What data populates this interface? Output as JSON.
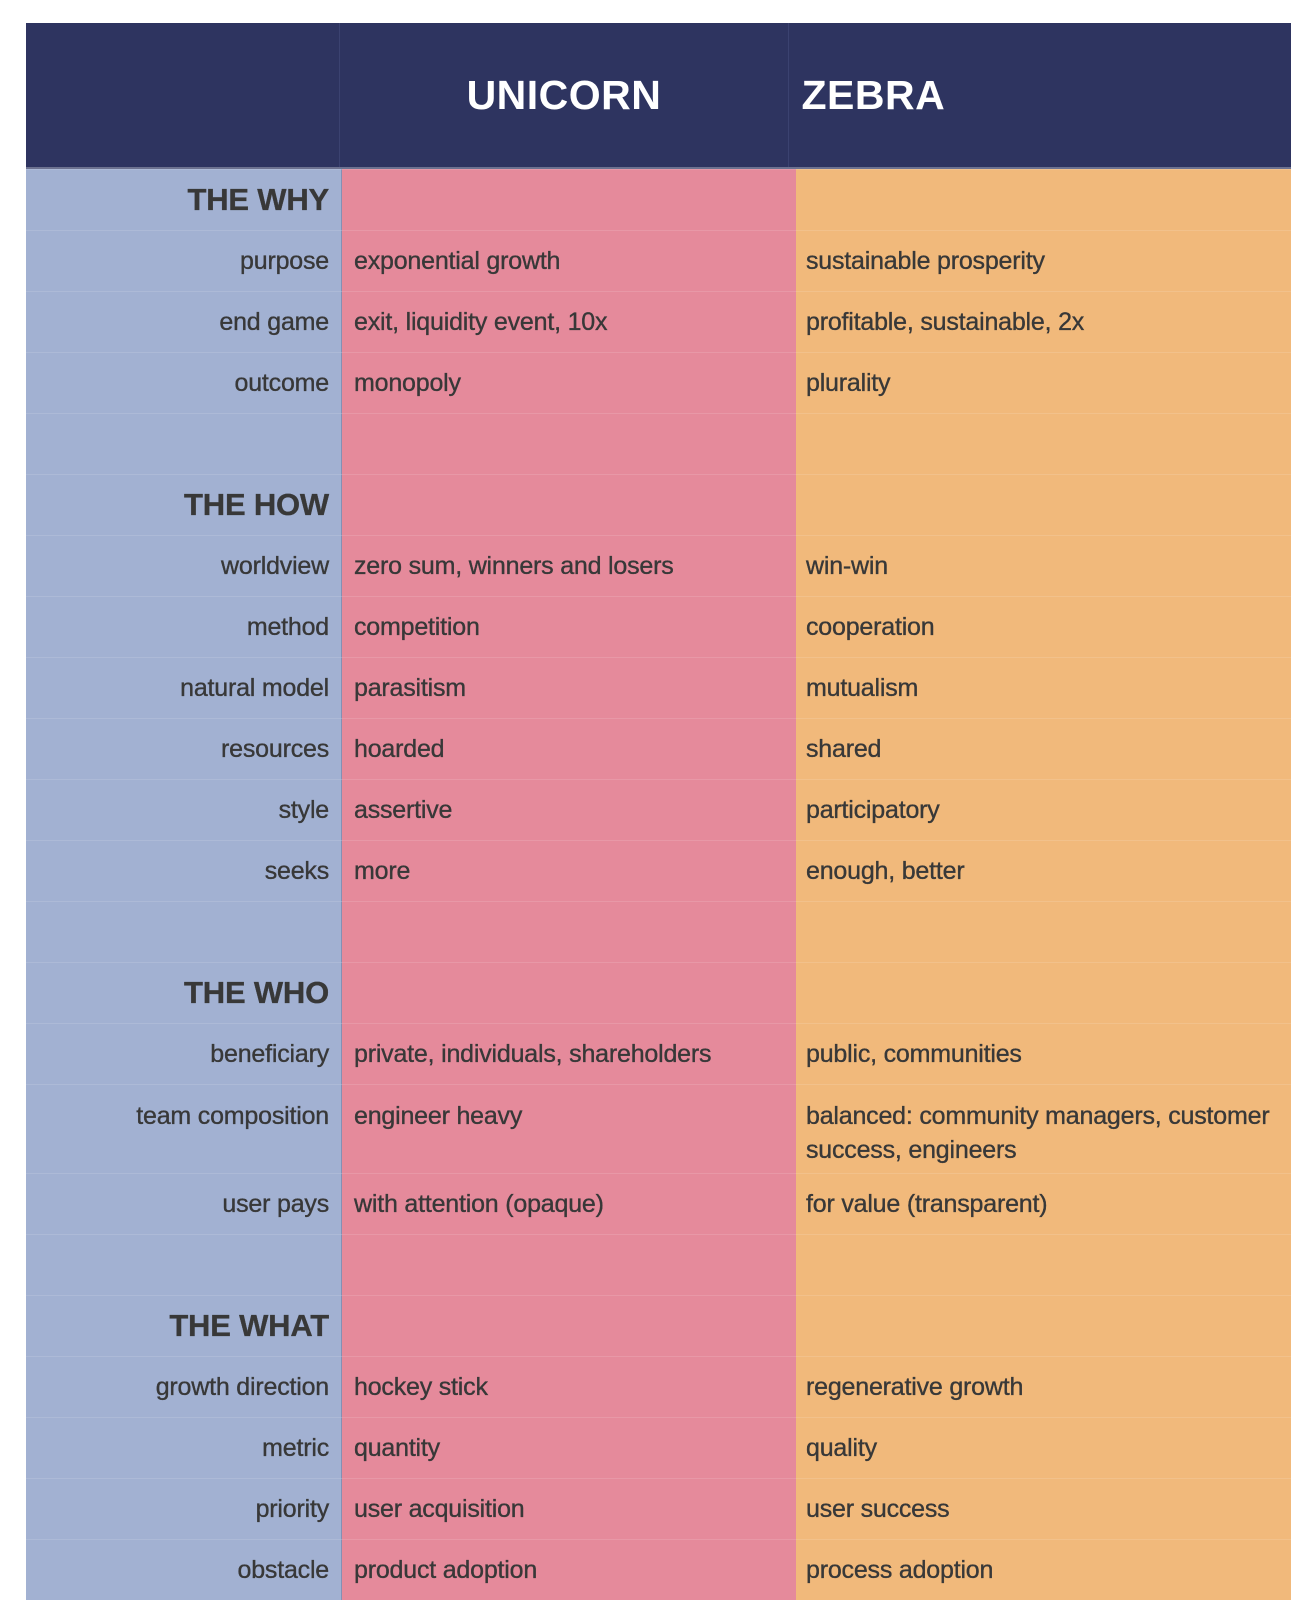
{
  "header": {
    "col1": "UNICORN",
    "col2": "ZEBRA"
  },
  "colors": {
    "header": "#2e3460",
    "label_column": "#a2b1d2",
    "unicorn_column": "#e58a9b",
    "zebra_column": "#f1b97b",
    "text": "#383838"
  },
  "rows": [
    {
      "type": "section",
      "label": "THE WHY",
      "unicorn": "",
      "zebra": ""
    },
    {
      "type": "item",
      "label": "purpose",
      "unicorn": "exponential growth",
      "zebra": "sustainable prosperity"
    },
    {
      "type": "item",
      "label": "end game",
      "unicorn": "exit, liquidity event, 10x",
      "zebra": "profitable, sustainable, 2x"
    },
    {
      "type": "item",
      "label": "outcome",
      "unicorn": "monopoly",
      "zebra": "plurality"
    },
    {
      "type": "blank",
      "label": "",
      "unicorn": "",
      "zebra": ""
    },
    {
      "type": "section",
      "label": "THE HOW",
      "unicorn": "",
      "zebra": ""
    },
    {
      "type": "item",
      "label": "worldview",
      "unicorn": "zero sum, winners and losers",
      "zebra": "win-win"
    },
    {
      "type": "item",
      "label": "method",
      "unicorn": "competition",
      "zebra": "cooperation"
    },
    {
      "type": "item",
      "label": "natural model",
      "unicorn": "parasitism",
      "zebra": "mutualism"
    },
    {
      "type": "item",
      "label": "resources",
      "unicorn": "hoarded",
      "zebra": "shared"
    },
    {
      "type": "item",
      "label": "style",
      "unicorn": "assertive",
      "zebra": "participatory"
    },
    {
      "type": "item",
      "label": "seeks",
      "unicorn": "more",
      "zebra": "enough, better"
    },
    {
      "type": "blank",
      "label": "",
      "unicorn": "",
      "zebra": ""
    },
    {
      "type": "section",
      "label": "THE WHO",
      "unicorn": "",
      "zebra": ""
    },
    {
      "type": "item",
      "label": "beneficiary",
      "unicorn": "private, individuals, shareholders",
      "zebra": "public, communities"
    },
    {
      "type": "item-tall",
      "label": "team composition",
      "unicorn": "engineer heavy",
      "zebra": "balanced: community managers, customer success, engineers"
    },
    {
      "type": "item",
      "label": "user pays",
      "unicorn": "with attention (opaque)",
      "zebra": "for value (transparent)"
    },
    {
      "type": "blank",
      "label": "",
      "unicorn": "",
      "zebra": ""
    },
    {
      "type": "section",
      "label": "THE WHAT",
      "unicorn": "",
      "zebra": ""
    },
    {
      "type": "item",
      "label": "growth direction",
      "unicorn": "hockey stick",
      "zebra": "regenerative growth"
    },
    {
      "type": "item",
      "label": "metric",
      "unicorn": "quantity",
      "zebra": "quality"
    },
    {
      "type": "item",
      "label": "priority",
      "unicorn": "user acquisition",
      "zebra": "user success"
    },
    {
      "type": "item",
      "label": "obstacle",
      "unicorn": "product adoption",
      "zebra": "process adoption"
    }
  ]
}
